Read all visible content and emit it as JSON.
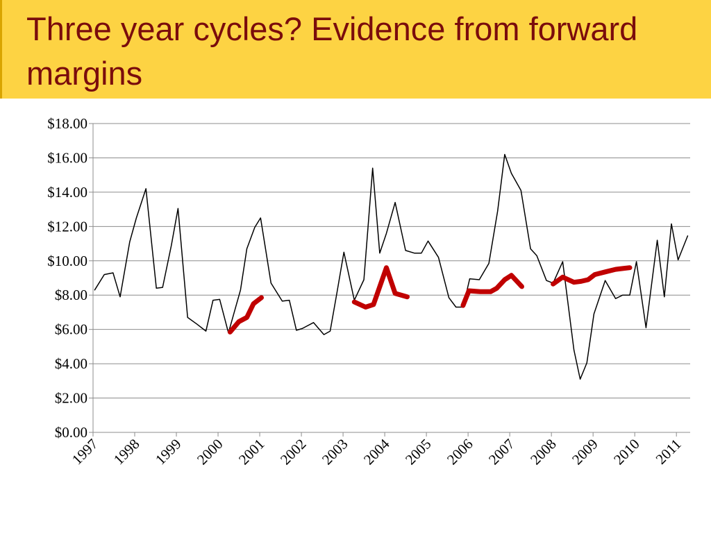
{
  "slide": {
    "title": "Three year cycles? Evidence from forward margins",
    "colors": {
      "banner": "#fdd343",
      "title": "#7a0c0c"
    }
  },
  "chart_data": {
    "type": "line",
    "title": "",
    "xlabel": "",
    "ylabel": "",
    "ylim": [
      0,
      18
    ],
    "xlim": [
      1997,
      2011.33
    ],
    "y_ticks": [
      "$0.00",
      "$2.00",
      "$4.00",
      "$6.00",
      "$8.00",
      "$10.00",
      "$12.00",
      "$14.00",
      "$16.00",
      "$18.00"
    ],
    "x_ticks": [
      "1997",
      "1998",
      "1999",
      "2000",
      "2001",
      "2002",
      "2003",
      "2004",
      "2005",
      "2006",
      "2007",
      "2008",
      "2009",
      "2010",
      "2011"
    ],
    "grid": true,
    "legend": "none",
    "series": [
      {
        "color": "#000000",
        "style": "thin",
        "x": [
          1997.04,
          1997.27,
          1997.48,
          1997.65,
          1997.88,
          1998.04,
          1998.27,
          1998.52,
          1998.67,
          1998.88,
          1999.04,
          1999.27,
          1999.5,
          1999.71,
          1999.88,
          2000.04,
          2000.25,
          2000.54,
          2000.69,
          2000.88,
          2001.02,
          2001.27,
          2001.54,
          2001.71,
          2001.88,
          2002.02,
          2002.29,
          2002.54,
          2002.69,
          2002.85,
          2003.02,
          2003.27,
          2003.5,
          2003.71,
          2003.88,
          2004.04,
          2004.25,
          2004.5,
          2004.71,
          2004.88,
          2005.04,
          2005.29,
          2005.54,
          2005.71,
          2005.88,
          2006.04,
          2006.27,
          2006.5,
          2006.71,
          2006.88,
          2007.04,
          2007.27,
          2007.5,
          2007.65,
          2007.88,
          2008.04,
          2008.27,
          2008.54,
          2008.69,
          2008.85,
          2009.02,
          2009.29,
          2009.54,
          2009.71,
          2009.88,
          2010.04,
          2010.27,
          2010.54,
          2010.71,
          2010.88,
          2011.04,
          2011.27
        ],
        "values": [
          8.3,
          9.2,
          9.3,
          7.9,
          11.1,
          12.5,
          14.2,
          8.4,
          8.45,
          10.9,
          13.05,
          6.7,
          6.3,
          5.9,
          7.7,
          7.75,
          5.8,
          8.3,
          10.7,
          11.95,
          12.5,
          8.7,
          7.65,
          7.7,
          5.95,
          6.05,
          6.4,
          5.7,
          5.9,
          8.1,
          10.5,
          7.7,
          8.9,
          15.4,
          10.45,
          11.6,
          13.4,
          10.6,
          10.45,
          10.45,
          11.15,
          10.2,
          7.85,
          7.3,
          7.3,
          8.95,
          8.9,
          9.85,
          12.9,
          16.2,
          15.1,
          14.1,
          10.7,
          10.3,
          8.85,
          8.7,
          9.95,
          4.8,
          3.1,
          4.05,
          6.9,
          8.85,
          7.8,
          8.0,
          8.0,
          9.95,
          6.1,
          11.2,
          7.9,
          12.15,
          10.05,
          11.45
        ]
      },
      {
        "color": "#c00000",
        "style": "thick",
        "x": [
          2000.29,
          2000.5,
          2000.69,
          2000.85,
          2001.04
        ],
        "values": [
          5.85,
          6.45,
          6.7,
          7.5,
          7.85
        ]
      },
      {
        "color": "#c00000",
        "style": "thick",
        "x": [
          2003.27,
          2003.54,
          2003.73,
          2004.04,
          2004.25,
          2004.54
        ],
        "values": [
          7.6,
          7.3,
          7.45,
          9.6,
          8.1,
          7.9
        ]
      },
      {
        "color": "#c00000",
        "style": "thick",
        "x": [
          2005.88,
          2006.02,
          2006.29,
          2006.54,
          2006.69,
          2006.88,
          2007.04,
          2007.29
        ],
        "values": [
          7.4,
          8.25,
          8.2,
          8.2,
          8.4,
          8.9,
          9.15,
          8.5
        ]
      },
      {
        "color": "#c00000",
        "style": "thick",
        "x": [
          2008.04,
          2008.27,
          2008.54,
          2008.71,
          2008.88,
          2009.04,
          2009.29,
          2009.54,
          2009.71,
          2009.88
        ],
        "values": [
          8.65,
          9.05,
          8.75,
          8.8,
          8.9,
          9.2,
          9.35,
          9.5,
          9.55,
          9.6
        ]
      }
    ]
  }
}
